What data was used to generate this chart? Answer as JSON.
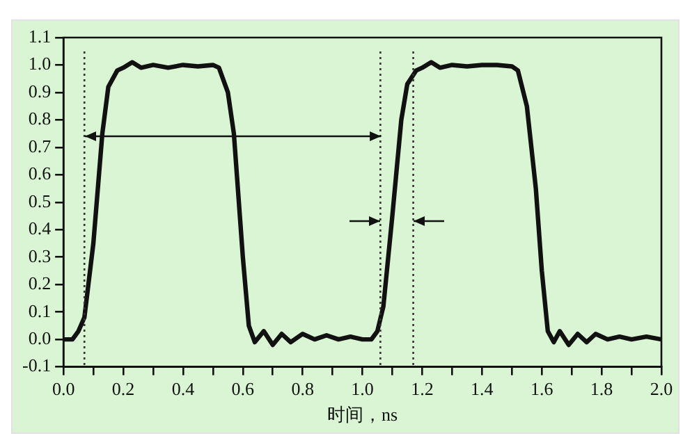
{
  "chart_data": {
    "type": "line",
    "xlabel": "时间，ns",
    "x": [
      0,
      0.03,
      0.05,
      0.07,
      0.1,
      0.13,
      0.15,
      0.18,
      0.2,
      0.23,
      0.26,
      0.3,
      0.35,
      0.4,
      0.45,
      0.5,
      0.52,
      0.55,
      0.57,
      0.6,
      0.62,
      0.64,
      0.67,
      0.7,
      0.73,
      0.76,
      0.8,
      0.84,
      0.88,
      0.92,
      0.96,
      1.0,
      1.03,
      1.05,
      1.07,
      1.1,
      1.13,
      1.15,
      1.18,
      1.2,
      1.23,
      1.26,
      1.3,
      1.35,
      1.4,
      1.45,
      1.5,
      1.52,
      1.55,
      1.58,
      1.6,
      1.62,
      1.64,
      1.66,
      1.69,
      1.72,
      1.75,
      1.78,
      1.82,
      1.86,
      1.9,
      1.95,
      2.0
    ],
    "series": [
      {
        "color": "#111111",
        "values": [
          0,
          0,
          0.03,
          0.08,
          0.35,
          0.75,
          0.92,
          0.98,
          0.99,
          1.01,
          0.99,
          1.0,
          0.99,
          1.0,
          0.995,
          1.0,
          0.99,
          0.9,
          0.75,
          0.3,
          0.05,
          -0.01,
          0.03,
          -0.02,
          0.02,
          -0.01,
          0.02,
          0,
          0.015,
          0,
          0.01,
          0,
          0,
          0.03,
          0.12,
          0.45,
          0.8,
          0.93,
          0.98,
          0.99,
          1.01,
          0.99,
          1.0,
          0.995,
          1.0,
          1.0,
          0.995,
          0.98,
          0.85,
          0.55,
          0.25,
          0.03,
          -0.01,
          0.03,
          -0.02,
          0.02,
          -0.01,
          0.02,
          0,
          0.01,
          0,
          0.01,
          0
        ]
      }
    ],
    "xlim": [
      0,
      2
    ],
    "xticks": [
      {
        "value": 0,
        "label": "0.0"
      },
      {
        "value": 0.1,
        "label": null
      },
      {
        "value": 0.2,
        "label": "0.2"
      },
      {
        "value": 0.3,
        "label": null
      },
      {
        "value": 0.4,
        "label": "0.4"
      },
      {
        "value": 0.5,
        "label": null
      },
      {
        "value": 0.6,
        "label": "0.6"
      },
      {
        "value": 0.7,
        "label": null
      },
      {
        "value": 0.8,
        "label": "0.8"
      },
      {
        "value": 0.9,
        "label": null
      },
      {
        "value": 1,
        "label": "1.0"
      },
      {
        "value": 1.1,
        "label": null
      },
      {
        "value": 1.2,
        "label": "1.2"
      },
      {
        "value": 1.3,
        "label": null
      },
      {
        "value": 1.4,
        "label": "1.4"
      },
      {
        "value": 1.5,
        "label": null
      },
      {
        "value": 1.6,
        "label": "1.6"
      },
      {
        "value": 1.7,
        "label": null
      },
      {
        "value": 1.8,
        "label": "1.8"
      },
      {
        "value": 1.9,
        "label": null
      },
      {
        "value": 2,
        "label": "2.0"
      }
    ],
    "ylim": [
      -0.1,
      1.1
    ],
    "yticks": [
      -0.1,
      {
        "value": 0,
        "label": "0.0"
      },
      0.1,
      0.2,
      0.3,
      0.4,
      0.5,
      0.6,
      0.7,
      0.8,
      0.9,
      {
        "value": 1,
        "label": "1.0"
      },
      1.1
    ],
    "ref_lines": [
      {
        "axis": "x",
        "value": 0.07,
        "line_style": "dotted",
        "color": "#333333"
      },
      {
        "axis": "x",
        "value": 1.06,
        "line_style": "dotted",
        "color": "#333333"
      },
      {
        "axis": "x",
        "value": 1.17,
        "line_style": "dotted",
        "color": "#333333"
      }
    ],
    "grid": false,
    "legend": false,
    "marker": "none",
    "line_style": "solid"
  }
}
